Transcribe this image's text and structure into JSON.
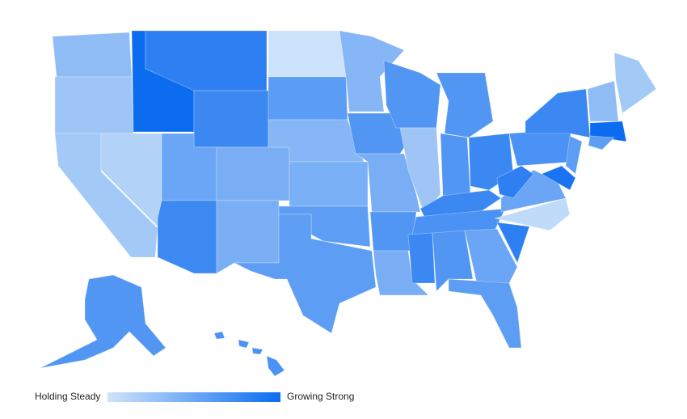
{
  "legend": {
    "low_label": "Holding Steady",
    "high_label": "Growing Strong",
    "low_color": "#cfe3fb",
    "high_color": "#0b6cf0"
  }
}
